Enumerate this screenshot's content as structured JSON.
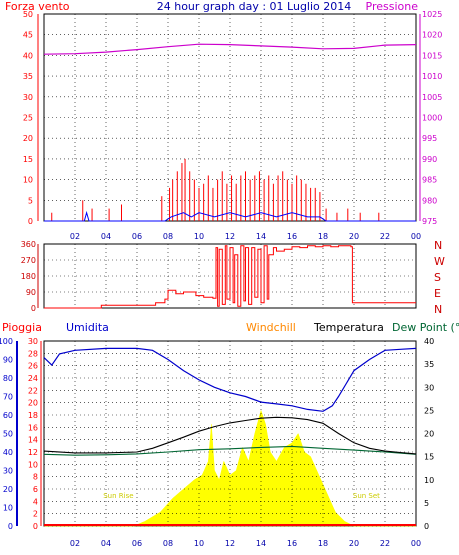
{
  "header": {
    "left": "Forza vento",
    "title": "24 hour graph day : 01 Luglio 2014",
    "right": "Pressione"
  },
  "legend_row": {
    "pioggia": "Pioggia",
    "umidita": "Umidita",
    "windchill": "Windchill",
    "temperatura": "Temperatura",
    "dewpoint": "Dew Point (°C"
  },
  "colors": {
    "wind": "#ff0000",
    "gust": "#0000ff",
    "pressure": "#cc00cc",
    "humidity": "#0000cc",
    "temperature": "#000000",
    "dewpoint": "#006633",
    "windchill": "#ff8800",
    "solar": "#ffff00",
    "rain": "#ff0000",
    "frame": "#000000",
    "grid": "#000000",
    "left_axis": "#ff0000",
    "right_axis": "#cc00cc",
    "hum_axis": "#0000cc",
    "dir_axis": "#cc0000"
  },
  "chart_data": [
    {
      "type": "line",
      "panel": "wind_pressure",
      "x_ticks": [
        "02",
        "04",
        "06",
        "08",
        "10",
        "12",
        "14",
        "16",
        "18",
        "20",
        "22",
        "00"
      ],
      "y_left": {
        "ticks": [
          0,
          5,
          10,
          15,
          20,
          25,
          30,
          35,
          40,
          45,
          50
        ],
        "range": [
          0,
          50
        ]
      },
      "y_right": {
        "ticks": [
          975,
          980,
          985,
          990,
          995,
          1000,
          1005,
          1010,
          1015,
          1020,
          1025
        ],
        "range": [
          975,
          1025
        ]
      },
      "series": [
        {
          "kind": "wind_bars",
          "points": [
            [
              0.5,
              2
            ],
            [
              2.5,
              5
            ],
            [
              3.1,
              3
            ],
            [
              4.2,
              3
            ],
            [
              5.0,
              4
            ],
            [
              7.6,
              6
            ],
            [
              8.1,
              8
            ],
            [
              8.3,
              10
            ],
            [
              8.6,
              12
            ],
            [
              8.9,
              14
            ],
            [
              9.1,
              15
            ],
            [
              9.4,
              12
            ],
            [
              9.7,
              10
            ],
            [
              10.0,
              8
            ],
            [
              10.3,
              9
            ],
            [
              10.6,
              11
            ],
            [
              10.9,
              8
            ],
            [
              11.2,
              10
            ],
            [
              11.5,
              12
            ],
            [
              11.8,
              9
            ],
            [
              12.1,
              11
            ],
            [
              12.4,
              9
            ],
            [
              12.7,
              11
            ],
            [
              13.0,
              12
            ],
            [
              13.3,
              10
            ],
            [
              13.6,
              11
            ],
            [
              13.9,
              12
            ],
            [
              14.2,
              10
            ],
            [
              14.5,
              11
            ],
            [
              14.8,
              9
            ],
            [
              15.1,
              11
            ],
            [
              15.4,
              12
            ],
            [
              15.7,
              10
            ],
            [
              16.0,
              9
            ],
            [
              16.3,
              11
            ],
            [
              16.6,
              10
            ],
            [
              16.9,
              9
            ],
            [
              17.2,
              8
            ],
            [
              17.5,
              8
            ],
            [
              17.8,
              7
            ],
            [
              18.2,
              3
            ],
            [
              18.9,
              2
            ],
            [
              19.6,
              3
            ],
            [
              20.4,
              2
            ],
            [
              21.6,
              2
            ]
          ]
        },
        {
          "kind": "gust_line",
          "points": [
            [
              0,
              0
            ],
            [
              2.6,
              0
            ],
            [
              2.75,
              2
            ],
            [
              2.9,
              0
            ],
            [
              7.8,
              0
            ],
            [
              8.2,
              1
            ],
            [
              9.0,
              2
            ],
            [
              9.5,
              1
            ],
            [
              10.0,
              2
            ],
            [
              11.0,
              1
            ],
            [
              12.0,
              2
            ],
            [
              13.0,
              1
            ],
            [
              14.0,
              2
            ],
            [
              15.0,
              1
            ],
            [
              16.0,
              2
            ],
            [
              17.0,
              1
            ],
            [
              17.8,
              1
            ],
            [
              18.2,
              0
            ],
            [
              24,
              0
            ]
          ]
        },
        {
          "kind": "pressure",
          "points": [
            [
              0,
              1015.3
            ],
            [
              2,
              1015.4
            ],
            [
              4,
              1015.8
            ],
            [
              6,
              1016.4
            ],
            [
              8,
              1017.1
            ],
            [
              10,
              1017.7
            ],
            [
              12,
              1017.6
            ],
            [
              14,
              1017.3
            ],
            [
              16,
              1017.0
            ],
            [
              18,
              1016.6
            ],
            [
              20,
              1016.7
            ],
            [
              22,
              1017.5
            ],
            [
              24,
              1017.6
            ]
          ]
        }
      ]
    },
    {
      "type": "line",
      "panel": "wind_direction",
      "x_ticks": [
        "02",
        "04",
        "06",
        "08",
        "10",
        "12",
        "14",
        "16",
        "18",
        "20",
        "22",
        "00"
      ],
      "y_left": {
        "ticks": [
          0,
          90,
          180,
          270,
          360
        ],
        "range": [
          0,
          360
        ]
      },
      "y_right_labels": [
        "N",
        "W",
        "S",
        "E",
        "N"
      ],
      "series": [
        {
          "kind": "direction",
          "points": [
            [
              0,
              0
            ],
            [
              3.5,
              0
            ],
            [
              3.7,
              15
            ],
            [
              6.8,
              15
            ],
            [
              7.2,
              30
            ],
            [
              7.8,
              50
            ],
            [
              8.0,
              100
            ],
            [
              8.5,
              80
            ],
            [
              9.0,
              90
            ],
            [
              9.8,
              70
            ],
            [
              10.3,
              60
            ],
            [
              10.9,
              55
            ],
            [
              11.1,
              340
            ],
            [
              11.2,
              10
            ],
            [
              11.3,
              330
            ],
            [
              11.5,
              20
            ],
            [
              11.7,
              350
            ],
            [
              11.8,
              50
            ],
            [
              12.0,
              340
            ],
            [
              12.2,
              30
            ],
            [
              12.3,
              300
            ],
            [
              12.5,
              10
            ],
            [
              12.7,
              350
            ],
            [
              12.9,
              40
            ],
            [
              13.0,
              340
            ],
            [
              13.2,
              20
            ],
            [
              13.4,
              340
            ],
            [
              13.6,
              60
            ],
            [
              13.8,
              330
            ],
            [
              14.0,
              30
            ],
            [
              14.2,
              350
            ],
            [
              14.4,
              50
            ],
            [
              14.5,
              300
            ],
            [
              14.8,
              340
            ],
            [
              15.0,
              320
            ],
            [
              15.5,
              330
            ],
            [
              16.0,
              345
            ],
            [
              16.5,
              340
            ],
            [
              17.0,
              350
            ],
            [
              17.5,
              345
            ],
            [
              18.0,
              350
            ],
            [
              18.5,
              345
            ],
            [
              19.0,
              350
            ],
            [
              19.8,
              345
            ],
            [
              19.9,
              30
            ],
            [
              24,
              30
            ]
          ]
        }
      ]
    },
    {
      "type": "line",
      "panel": "temp_humidity",
      "x_ticks": [
        "02",
        "04",
        "06",
        "08",
        "10",
        "12",
        "14",
        "16",
        "18",
        "20",
        "22",
        "00"
      ],
      "y_hum": {
        "ticks": [
          0,
          10,
          20,
          30,
          40,
          50,
          60,
          70,
          80,
          90,
          100
        ],
        "range": [
          0,
          100
        ]
      },
      "y_rain": {
        "ticks": [
          0,
          2,
          4,
          6,
          8,
          10,
          12,
          14,
          16,
          18,
          20,
          22,
          24,
          26,
          28,
          30
        ],
        "range": [
          0,
          30
        ]
      },
      "y_right": {
        "ticks": [
          0,
          5,
          10,
          15,
          20,
          25,
          30,
          35,
          40
        ],
        "range": [
          0,
          40
        ]
      },
      "annotations": [
        "Sun Rise",
        "Sun Set"
      ],
      "series": [
        {
          "kind": "solar",
          "points": [
            [
              0,
              0
            ],
            [
              5.8,
              0
            ],
            [
              6.5,
              1
            ],
            [
              7.5,
              3
            ],
            [
              8.3,
              6
            ],
            [
              9.0,
              8
            ],
            [
              9.7,
              10
            ],
            [
              10.2,
              11
            ],
            [
              10.6,
              14
            ],
            [
              10.8,
              22
            ],
            [
              11.0,
              12
            ],
            [
              11.3,
              10
            ],
            [
              11.6,
              14
            ],
            [
              12.0,
              11
            ],
            [
              12.4,
              12
            ],
            [
              12.8,
              17
            ],
            [
              13.2,
              14
            ],
            [
              13.6,
              20
            ],
            [
              14.0,
              25
            ],
            [
              14.3,
              22
            ],
            [
              14.6,
              16
            ],
            [
              15.0,
              14
            ],
            [
              15.5,
              17
            ],
            [
              16.0,
              18
            ],
            [
              16.4,
              20
            ],
            [
              16.8,
              16
            ],
            [
              17.2,
              15
            ],
            [
              17.6,
              12
            ],
            [
              18.0,
              9
            ],
            [
              18.4,
              6
            ],
            [
              18.8,
              3
            ],
            [
              19.4,
              1
            ],
            [
              20,
              0
            ],
            [
              24,
              0
            ]
          ]
        },
        {
          "kind": "humidity",
          "points": [
            [
              0,
              91
            ],
            [
              0.5,
              87
            ],
            [
              1.0,
              93
            ],
            [
              2,
              95
            ],
            [
              4,
              96
            ],
            [
              6,
              96
            ],
            [
              7,
              95
            ],
            [
              8,
              90
            ],
            [
              9,
              84
            ],
            [
              10,
              79
            ],
            [
              11,
              75
            ],
            [
              12,
              72
            ],
            [
              13,
              70
            ],
            [
              14,
              67
            ],
            [
              15,
              66
            ],
            [
              16,
              65
            ],
            [
              17,
              63
            ],
            [
              18,
              62
            ],
            [
              18.6,
              65
            ],
            [
              19.0,
              70
            ],
            [
              19.5,
              77
            ],
            [
              20,
              84
            ],
            [
              21,
              90
            ],
            [
              22,
              95
            ],
            [
              23,
              95.5
            ],
            [
              24,
              96
            ]
          ]
        },
        {
          "kind": "temperature",
          "points": [
            [
              0,
              16.2
            ],
            [
              2,
              15.8
            ],
            [
              4,
              15.8
            ],
            [
              6,
              16.0
            ],
            [
              7,
              16.8
            ],
            [
              8,
              18.0
            ],
            [
              9,
              19.2
            ],
            [
              10,
              20.5
            ],
            [
              11,
              21.5
            ],
            [
              12,
              22.3
            ],
            [
              13,
              22.8
            ],
            [
              14,
              23.3
            ],
            [
              15,
              23.5
            ],
            [
              16,
              23.4
            ],
            [
              17,
              23.0
            ],
            [
              18,
              22.2
            ],
            [
              19,
              20.0
            ],
            [
              20,
              18.0
            ],
            [
              21,
              16.8
            ],
            [
              22,
              16.2
            ],
            [
              23,
              15.9
            ],
            [
              24,
              15.6
            ]
          ]
        },
        {
          "kind": "dewpoint",
          "points": [
            [
              0,
              15.5
            ],
            [
              2,
              15.3
            ],
            [
              4,
              15.4
            ],
            [
              6,
              15.6
            ],
            [
              8,
              16.0
            ],
            [
              10,
              16.5
            ],
            [
              12,
              16.7
            ],
            [
              14,
              17.0
            ],
            [
              16,
              17.2
            ],
            [
              18,
              16.8
            ],
            [
              20,
              16.4
            ],
            [
              22,
              16.0
            ],
            [
              24,
              15.5
            ]
          ]
        }
      ]
    }
  ]
}
